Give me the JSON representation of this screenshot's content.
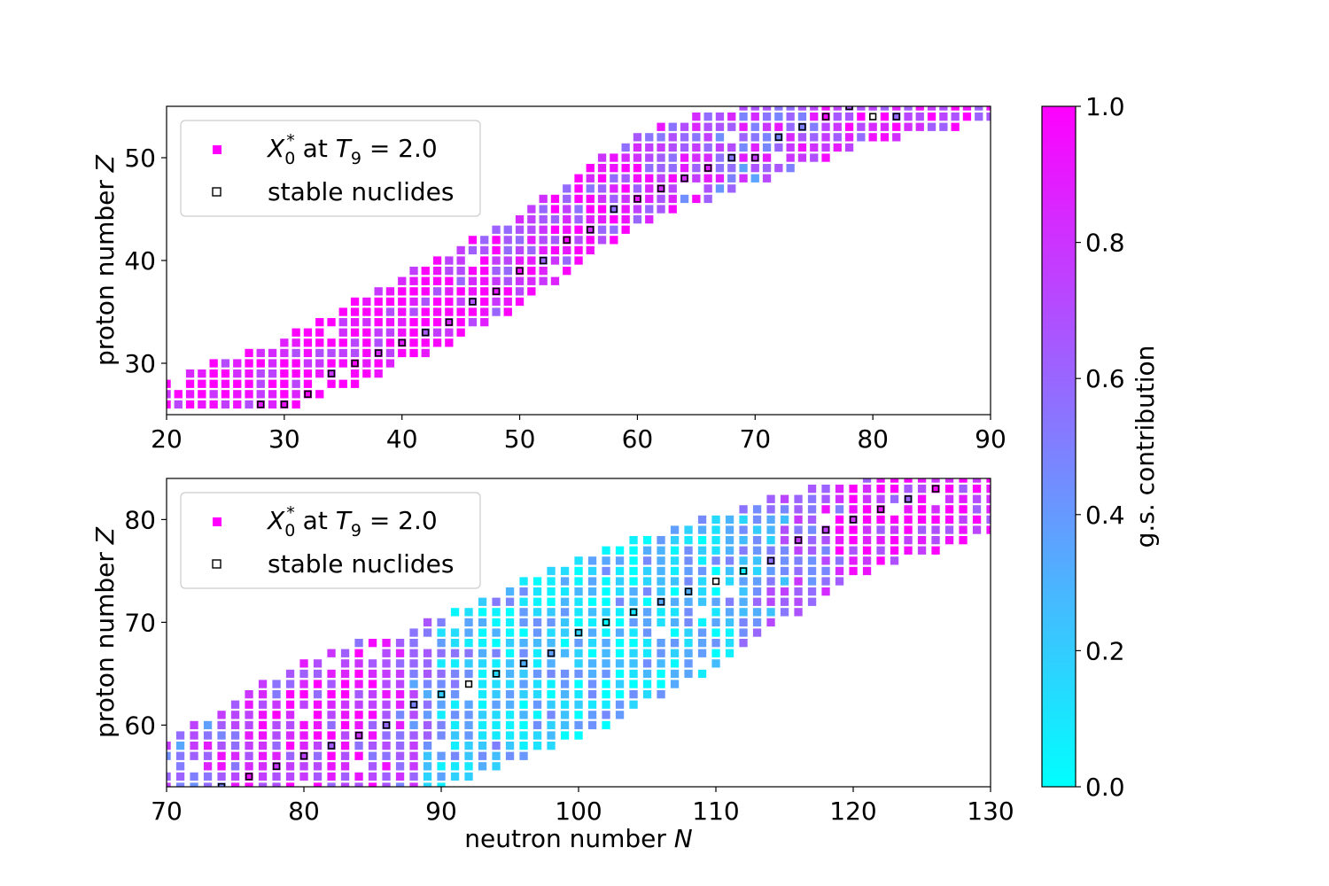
{
  "chart_data": [
    {
      "type": "scatter",
      "panel": "top",
      "xlim": [
        20,
        90
      ],
      "ylim": [
        25,
        55
      ],
      "xticks": [
        "20",
        "30",
        "40",
        "50",
        "60",
        "70",
        "80",
        "90"
      ],
      "yticks": [
        "30",
        "40",
        "50"
      ],
      "xlabel": "",
      "ylabel": "proton number Z",
      "legend": {
        "placement": "top-left",
        "entries": [
          "X_0^* at T_9 = 2.0",
          "stable nuclides"
        ]
      },
      "band": [
        [
          20,
          26,
          28
        ],
        [
          30,
          26,
          32
        ],
        [
          40,
          30,
          38
        ],
        [
          50,
          36,
          44
        ],
        [
          60,
          44,
          52
        ],
        [
          70,
          48,
          55
        ],
        [
          80,
          52,
          55
        ],
        [
          90,
          54,
          55
        ]
      ],
      "stable_ridge": [
        [
          28,
          26
        ],
        [
          30,
          26
        ],
        [
          32,
          27
        ],
        [
          34,
          29
        ],
        [
          36,
          30
        ],
        [
          38,
          31
        ],
        [
          40,
          32
        ],
        [
          42,
          33
        ],
        [
          44,
          34
        ],
        [
          46,
          36
        ],
        [
          48,
          37
        ],
        [
          50,
          39
        ],
        [
          52,
          40
        ],
        [
          54,
          42
        ],
        [
          56,
          43
        ],
        [
          58,
          45
        ],
        [
          60,
          46
        ],
        [
          62,
          47
        ],
        [
          64,
          48
        ],
        [
          66,
          49
        ],
        [
          68,
          50
        ],
        [
          70,
          50
        ],
        [
          72,
          52
        ],
        [
          74,
          53
        ],
        [
          76,
          54
        ],
        [
          78,
          55
        ],
        [
          80,
          54
        ],
        [
          82,
          54
        ]
      ],
      "gs_trend": [
        [
          20,
          1.0
        ],
        [
          40,
          0.92
        ],
        [
          50,
          0.85
        ],
        [
          60,
          0.78
        ],
        [
          70,
          0.62
        ],
        [
          80,
          0.8
        ],
        [
          90,
          0.9
        ]
      ]
    },
    {
      "type": "scatter",
      "panel": "bottom",
      "xlim": [
        70,
        130
      ],
      "ylim": [
        54,
        84
      ],
      "xticks": [
        "70",
        "80",
        "90",
        "100",
        "110",
        "120",
        "130"
      ],
      "yticks": [
        "60",
        "70",
        "80"
      ],
      "xlabel": "neutron number N",
      "ylabel": "proton number Z",
      "legend": {
        "placement": "top-left",
        "entries": [
          "X_0^* at T_9 = 2.0",
          "stable nuclides"
        ]
      },
      "band": [
        [
          70,
          54,
          58
        ],
        [
          80,
          54,
          66
        ],
        [
          90,
          54,
          70
        ],
        [
          100,
          59,
          76
        ],
        [
          110,
          66,
          80
        ],
        [
          120,
          75,
          84
        ],
        [
          130,
          79,
          84
        ]
      ],
      "stable_ridge": [
        [
          74,
          54
        ],
        [
          76,
          55
        ],
        [
          78,
          56
        ],
        [
          80,
          57
        ],
        [
          82,
          58
        ],
        [
          84,
          59
        ],
        [
          86,
          60
        ],
        [
          88,
          62
        ],
        [
          90,
          63
        ],
        [
          92,
          64
        ],
        [
          94,
          65
        ],
        [
          96,
          66
        ],
        [
          98,
          67
        ],
        [
          100,
          69
        ],
        [
          102,
          70
        ],
        [
          104,
          71
        ],
        [
          106,
          72
        ],
        [
          108,
          73
        ],
        [
          110,
          74
        ],
        [
          112,
          75
        ],
        [
          114,
          76
        ],
        [
          116,
          78
        ],
        [
          118,
          79
        ],
        [
          120,
          80
        ],
        [
          122,
          81
        ],
        [
          124,
          82
        ],
        [
          126,
          83
        ]
      ],
      "gs_trend": [
        [
          70,
          0.55
        ],
        [
          80,
          0.85
        ],
        [
          86,
          0.8
        ],
        [
          90,
          0.3
        ],
        [
          100,
          0.18
        ],
        [
          110,
          0.22
        ],
        [
          115,
          0.5
        ],
        [
          120,
          0.85
        ],
        [
          130,
          0.9
        ]
      ]
    }
  ],
  "colorbar": {
    "label": "g.s. contribution",
    "range": [
      0.0,
      1.0
    ],
    "ticks": [
      "0.0",
      "0.2",
      "0.4",
      "0.6",
      "0.8",
      "1.0"
    ],
    "low_color": "#00ffff",
    "high_color": "#ff00ff",
    "colormap": "cool"
  },
  "legend_text": {
    "sym": "X",
    "sub": "0",
    "sup": "*",
    "at": " at ",
    "tsym": "T",
    "tsub": "9",
    "tval": " = 2.0",
    "stable": "stable nuclides"
  },
  "labels": {
    "ylabel_prefix": "proton number ",
    "ylabel_var": "Z",
    "xlabel_prefix": "neutron number ",
    "xlabel_var": "N"
  }
}
